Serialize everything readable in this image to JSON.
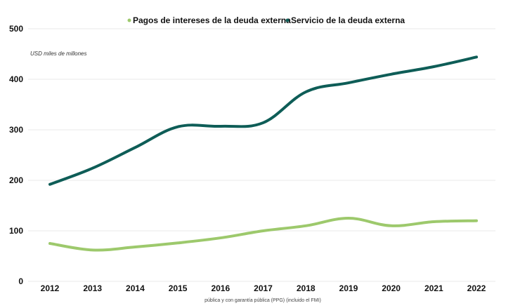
{
  "chart_data": {
    "type": "line",
    "unit_label": "USD miles de millones",
    "footnote": "pública y con garantía pública (PPG) (incluido el FMI)",
    "x": [
      "2012",
      "2013",
      "2014",
      "2015",
      "2016",
      "2017",
      "2018",
      "2019",
      "2020",
      "2021",
      "2022"
    ],
    "ylim": [
      0,
      500
    ],
    "yticks": [
      "0",
      "100",
      "200",
      "300",
      "400",
      "500"
    ],
    "grid": true,
    "legend_position": "top",
    "series": [
      {
        "name": "Pagos de intereses de la deuda externa",
        "color": "#9dc96c",
        "values": [
          75,
          62,
          68,
          76,
          86,
          100,
          110,
          125,
          110,
          118,
          120
        ]
      },
      {
        "name": "Servicio de la deuda externa",
        "color": "#0e5d57",
        "values": [
          192,
          224,
          265,
          306,
          307,
          314,
          375,
          393,
          410,
          425,
          444
        ]
      }
    ]
  }
}
